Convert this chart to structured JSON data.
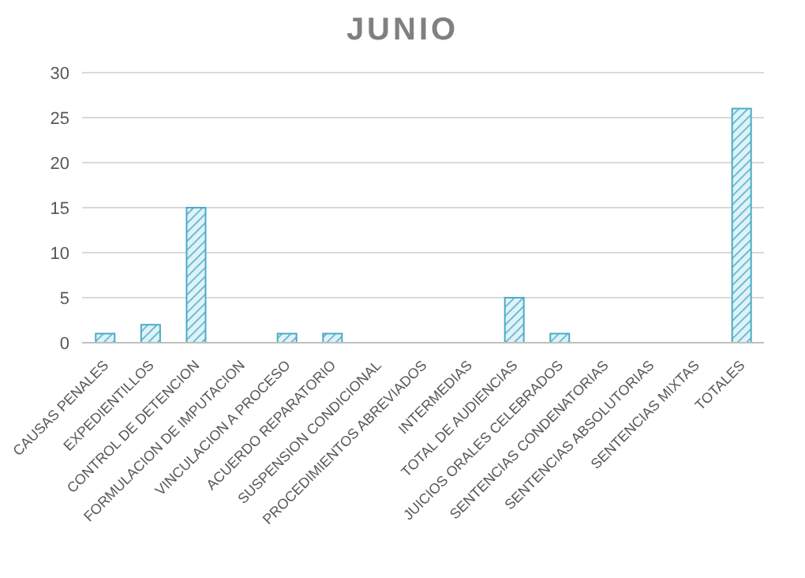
{
  "chart_data": {
    "type": "bar",
    "title": "JUNIO",
    "categories": [
      "CAUSAS PENALES",
      "EXPEDIENTILLOS",
      "CONTROL DE DETENCION",
      "FORMULACION DE IMPUTACION",
      "VINCULACION A PROCESO",
      "ACUERDO REPARATORIO",
      "SUSPENSION CONDICIONAL",
      "PROCEDIMIENTOS ABREVIADOS",
      "INTERMEDIAS",
      "TOTAL DE AUDIENCIAS",
      "JUICIOS ORALES CELEBRADOS",
      "SENTENCIAS CONDENATORIAS",
      "SENTENCIAS ABSOLUTORIAS",
      "SENTENCIAS MIXTAS",
      "TOTALES"
    ],
    "values": [
      1,
      2,
      15,
      0,
      1,
      1,
      0,
      0,
      0,
      5,
      1,
      0,
      0,
      0,
      26
    ],
    "color": "#4bacc6",
    "ylim": [
      0,
      30
    ],
    "yticks": [
      0,
      5,
      10,
      15,
      20,
      25,
      30
    ],
    "grid": "y",
    "legend": false
  }
}
